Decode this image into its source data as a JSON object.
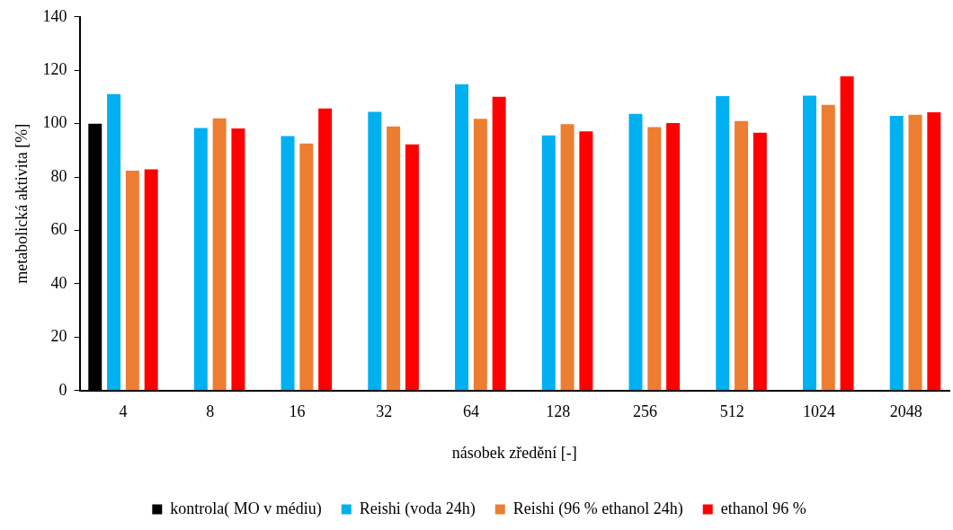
{
  "chart_data": {
    "type": "bar",
    "xlabel": "násobek zředění [-]",
    "ylabel": "metabolická aktivita [%]",
    "categories": [
      "4",
      "8",
      "16",
      "32",
      "64",
      "128",
      "256",
      "512",
      "1024",
      "2048"
    ],
    "series": [
      {
        "name": "kontrola( MO v médiu)",
        "color": "#000000",
        "values": [
          100,
          null,
          null,
          null,
          null,
          null,
          null,
          null,
          null,
          null
        ]
      },
      {
        "name": "Reishi (voda 24h)",
        "color": "#00b0f0",
        "values": [
          111.1,
          98.4,
          95.3,
          104.4,
          114.8,
          95.6,
          103.7,
          110.3,
          110.5,
          102.9
        ]
      },
      {
        "name": "Reishi (96 % ethanol 24h)",
        "color": "#ed7d31",
        "values": [
          82.4,
          102,
          92.6,
          99,
          101.8,
          99.8,
          98.7,
          101,
          107,
          103.3
        ]
      },
      {
        "name": "ethanol 96 %",
        "color": "#ff0000",
        "values": [
          82.9,
          98.2,
          105.7,
          92.2,
          110.1,
          97.1,
          100.2,
          96.6,
          117.7,
          104.3
        ]
      }
    ],
    "ylim": [
      0,
      140
    ],
    "yticks": [
      0,
      20,
      40,
      60,
      80,
      100,
      120,
      140
    ],
    "grid": false,
    "legend": "bottom"
  }
}
